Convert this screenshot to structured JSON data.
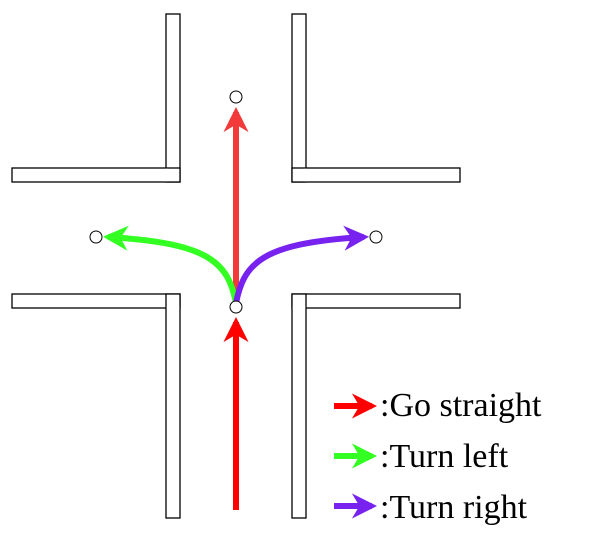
{
  "colors": {
    "straight": "#ff0000",
    "straight_light": "#f23a3a",
    "left": "#33ff22",
    "right": "#7722ee",
    "wall_stroke": "#000000",
    "background": "#ffffff"
  },
  "legend": {
    "items": [
      {
        "key": "straight",
        "label": ":Go straight"
      },
      {
        "key": "left",
        "label": ":Turn left"
      },
      {
        "key": "right",
        "label": ":Turn right"
      }
    ]
  }
}
